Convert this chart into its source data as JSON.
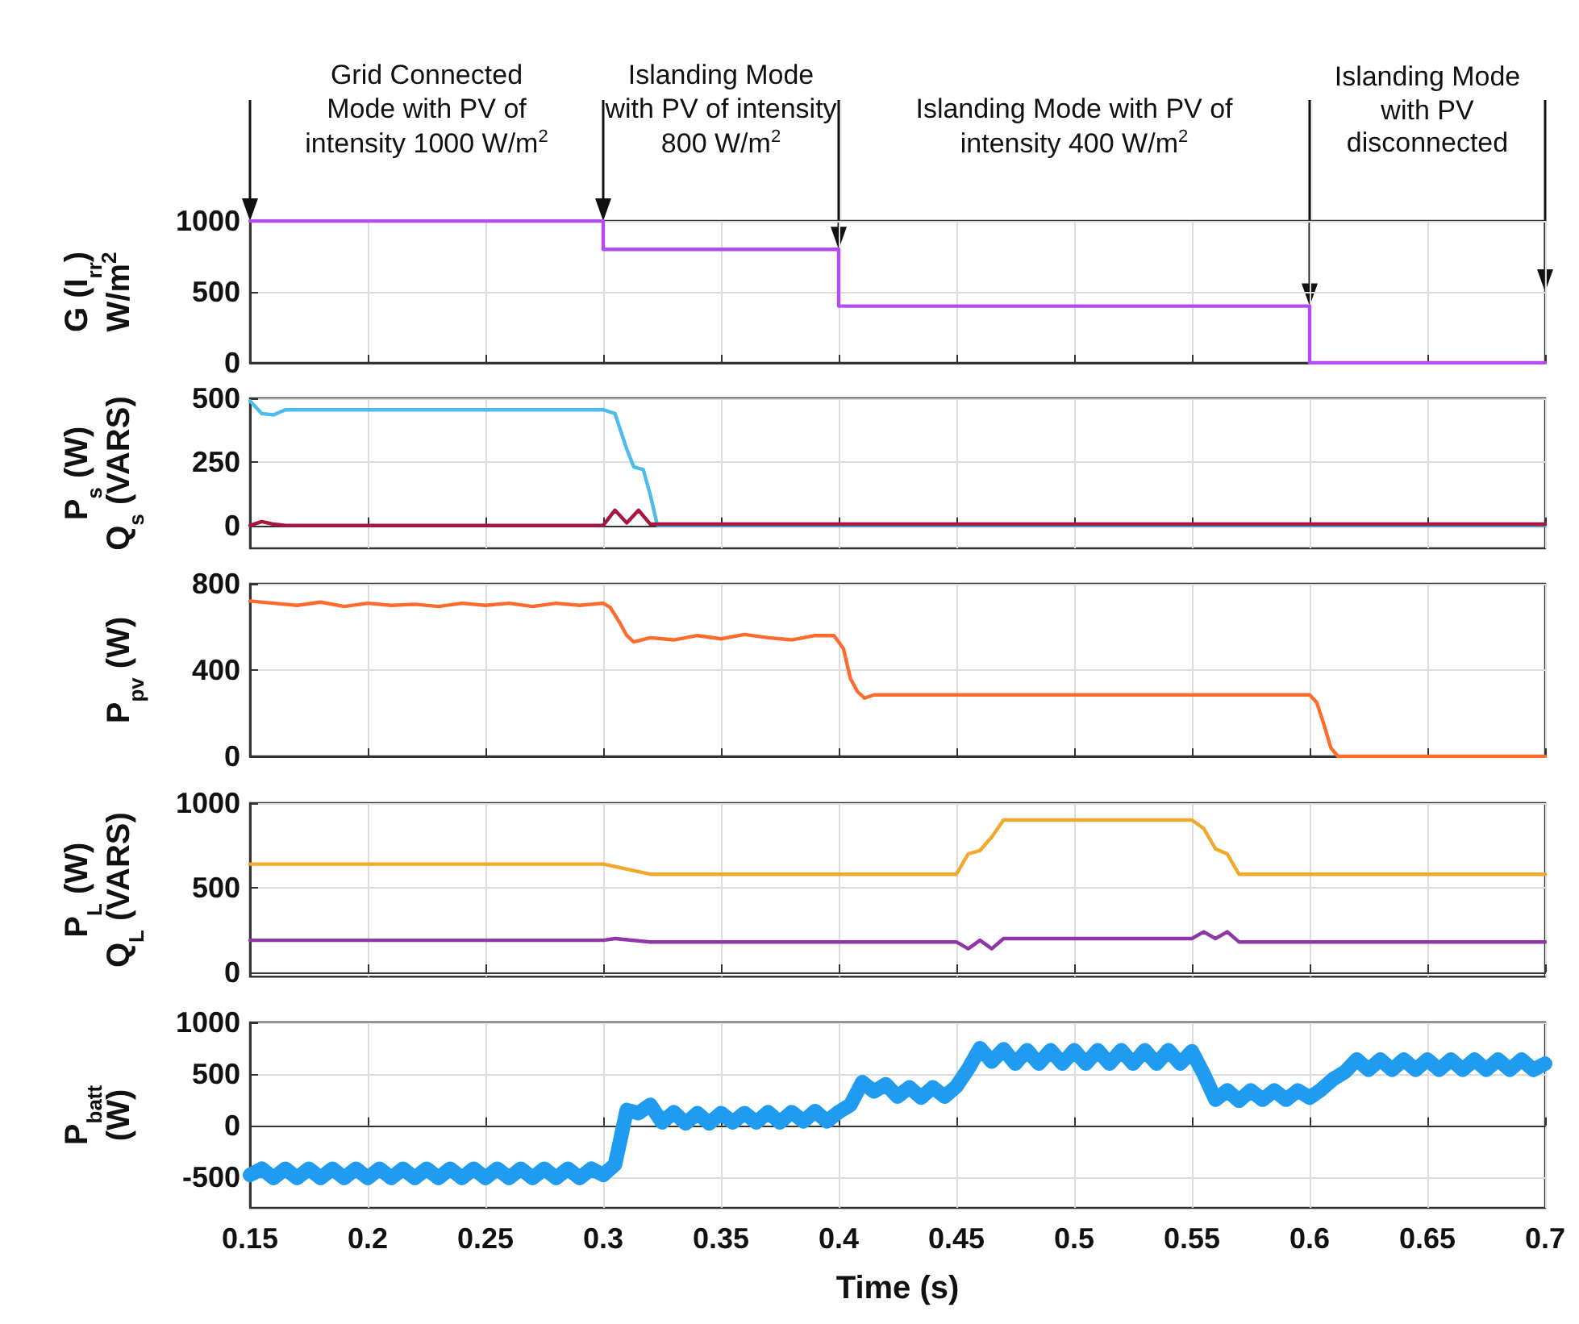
{
  "chart_data": [
    {
      "type": "line",
      "ylabel": "G (I$_{rr}$)\nW/m$^{2}$",
      "xlim": [
        0.15,
        0.7
      ],
      "xticks": [
        0.15,
        0.2,
        0.25,
        0.3,
        0.35,
        0.4,
        0.45,
        0.5,
        0.55,
        0.6,
        0.65,
        0.7
      ],
      "ylim": [
        0,
        1000
      ],
      "yticks": [
        0,
        500,
        1000
      ],
      "grid": true,
      "tick_labels": "y",
      "marker": "none",
      "annotations": [
        "Grid Connected\nMode with PV of\nintensity 1000 W/m$^{2}$",
        "Islanding Mode\nwith PV of intensity\n800 W/m$^{2}$",
        "Islanding Mode with PV of\nintensity 400 W/m$^{2}$",
        "Islanding Mode\nwith PV\ndisconnected"
      ],
      "series": [
        {
          "color": "#b44cf5",
          "x": [
            0.15,
            0.3,
            0.3,
            0.4,
            0.4,
            0.6,
            0.6,
            0.7
          ],
          "values": [
            1000,
            1000,
            800,
            800,
            400,
            400,
            0,
            0
          ]
        }
      ]
    },
    {
      "type": "line",
      "ylabel": "P$_{s}$ (W)\nQ$_{s}$ (VARS)",
      "xlim": [
        0.15,
        0.7
      ],
      "xticks": [
        0.15,
        0.2,
        0.25,
        0.3,
        0.35,
        0.4,
        0.45,
        0.5,
        0.55,
        0.6,
        0.65,
        0.7
      ],
      "ylim": [
        -90,
        500
      ],
      "yticks": [
        0,
        250,
        500
      ],
      "grid": true,
      "tick_labels": "y",
      "marker": "none",
      "series": [
        {
          "color": "#4bbcec",
          "x": [
            0.15,
            0.155,
            0.16,
            0.165,
            0.17,
            0.2,
            0.25,
            0.3,
            0.305,
            0.31,
            0.313,
            0.317,
            0.32,
            0.323,
            0.4,
            0.5,
            0.6,
            0.7
          ],
          "values": [
            490,
            440,
            435,
            455,
            455,
            455,
            455,
            455,
            440,
            300,
            230,
            220,
            120,
            0,
            0,
            0,
            0,
            0
          ]
        },
        {
          "color": "#a8163f",
          "x": [
            0.15,
            0.155,
            0.16,
            0.165,
            0.2,
            0.25,
            0.3,
            0.305,
            0.31,
            0.315,
            0.32,
            0.4,
            0.5,
            0.6,
            0.7
          ],
          "values": [
            0,
            15,
            5,
            0,
            0,
            0,
            0,
            60,
            10,
            60,
            5,
            5,
            5,
            5,
            5
          ]
        }
      ]
    },
    {
      "type": "line",
      "ylabel": "P$_{pv}$ (W)",
      "xlim": [
        0.15,
        0.7
      ],
      "xticks": [
        0.15,
        0.2,
        0.25,
        0.3,
        0.35,
        0.4,
        0.45,
        0.5,
        0.55,
        0.6,
        0.65,
        0.7
      ],
      "ylim": [
        0,
        800
      ],
      "yticks": [
        0,
        400,
        800
      ],
      "grid": true,
      "tick_labels": "y",
      "marker": "none",
      "series": [
        {
          "color": "#ff6b2c",
          "x": [
            0.15,
            0.16,
            0.17,
            0.18,
            0.19,
            0.2,
            0.21,
            0.22,
            0.23,
            0.24,
            0.25,
            0.26,
            0.27,
            0.28,
            0.29,
            0.3,
            0.303,
            0.307,
            0.31,
            0.313,
            0.32,
            0.33,
            0.34,
            0.35,
            0.36,
            0.37,
            0.38,
            0.39,
            0.398,
            0.402,
            0.405,
            0.408,
            0.411,
            0.415,
            0.45,
            0.5,
            0.55,
            0.6,
            0.603,
            0.606,
            0.609,
            0.612,
            0.7
          ],
          "values": [
            720,
            710,
            700,
            715,
            695,
            710,
            700,
            705,
            695,
            710,
            700,
            710,
            695,
            710,
            700,
            710,
            690,
            620,
            560,
            530,
            550,
            540,
            560,
            545,
            565,
            550,
            540,
            560,
            560,
            500,
            360,
            300,
            270,
            285,
            285,
            285,
            285,
            285,
            250,
            150,
            40,
            0,
            0
          ]
        }
      ]
    },
    {
      "type": "line",
      "ylabel": "P$_{L}$ (W)\nQ$_{L}$ (VARS)",
      "xlim": [
        0.15,
        0.7
      ],
      "xticks": [
        0.15,
        0.2,
        0.25,
        0.3,
        0.35,
        0.4,
        0.45,
        0.5,
        0.55,
        0.6,
        0.65,
        0.7
      ],
      "ylim": [
        -25,
        1000
      ],
      "yticks": [
        0,
        500,
        1000
      ],
      "grid": true,
      "tick_labels": "y",
      "marker": "none",
      "series": [
        {
          "color": "#f2a82a",
          "x": [
            0.15,
            0.2,
            0.25,
            0.3,
            0.31,
            0.32,
            0.4,
            0.45,
            0.455,
            0.46,
            0.465,
            0.47,
            0.5,
            0.55,
            0.555,
            0.56,
            0.565,
            0.57,
            0.6,
            0.7
          ],
          "values": [
            640,
            640,
            640,
            640,
            610,
            580,
            580,
            580,
            700,
            720,
            800,
            900,
            900,
            900,
            850,
            730,
            700,
            580,
            580,
            580
          ]
        },
        {
          "color": "#8e35a8",
          "x": [
            0.15,
            0.2,
            0.25,
            0.3,
            0.305,
            0.32,
            0.4,
            0.45,
            0.455,
            0.46,
            0.465,
            0.47,
            0.5,
            0.55,
            0.555,
            0.56,
            0.565,
            0.57,
            0.6,
            0.7
          ],
          "values": [
            190,
            190,
            190,
            190,
            200,
            180,
            180,
            180,
            140,
            190,
            140,
            200,
            200,
            200,
            240,
            200,
            240,
            180,
            180,
            180
          ]
        }
      ]
    },
    {
      "type": "line",
      "ylabel": "P$_{batt}$\n(W)",
      "xlabel": "Time (s)",
      "xlim": [
        0.15,
        0.7
      ],
      "xticks": [
        0.15,
        0.2,
        0.25,
        0.3,
        0.35,
        0.4,
        0.45,
        0.5,
        0.55,
        0.6,
        0.65,
        0.7
      ],
      "ylim": [
        -800,
        1000
      ],
      "yticks": [
        -500,
        0,
        500,
        1000
      ],
      "grid": true,
      "marker": "none",
      "series": [
        {
          "color": "#1f9cf0",
          "x": [
            0.15,
            0.155,
            0.16,
            0.165,
            0.17,
            0.175,
            0.18,
            0.185,
            0.19,
            0.195,
            0.2,
            0.205,
            0.21,
            0.215,
            0.22,
            0.225,
            0.23,
            0.235,
            0.24,
            0.245,
            0.25,
            0.255,
            0.26,
            0.265,
            0.27,
            0.275,
            0.28,
            0.285,
            0.29,
            0.295,
            0.3,
            0.305,
            0.31,
            0.315,
            0.32,
            0.325,
            0.33,
            0.335,
            0.34,
            0.345,
            0.35,
            0.355,
            0.36,
            0.365,
            0.37,
            0.375,
            0.38,
            0.385,
            0.39,
            0.395,
            0.4,
            0.405,
            0.41,
            0.415,
            0.42,
            0.425,
            0.43,
            0.435,
            0.44,
            0.445,
            0.45,
            0.455,
            0.46,
            0.465,
            0.47,
            0.475,
            0.48,
            0.485,
            0.49,
            0.495,
            0.5,
            0.505,
            0.51,
            0.515,
            0.52,
            0.525,
            0.53,
            0.535,
            0.54,
            0.545,
            0.55,
            0.555,
            0.56,
            0.565,
            0.57,
            0.575,
            0.58,
            0.585,
            0.59,
            0.595,
            0.6,
            0.605,
            0.61,
            0.615,
            0.62,
            0.625,
            0.63,
            0.635,
            0.64,
            0.645,
            0.65,
            0.655,
            0.66,
            0.665,
            0.67,
            0.675,
            0.68,
            0.685,
            0.69,
            0.695,
            0.7
          ],
          "values": [
            -480,
            -420,
            -510,
            -420,
            -510,
            -420,
            -510,
            -420,
            -510,
            -420,
            -510,
            -420,
            -510,
            -420,
            -510,
            -420,
            -510,
            -420,
            -510,
            -420,
            -510,
            -420,
            -510,
            -420,
            -510,
            -420,
            -510,
            -420,
            -510,
            -420,
            -480,
            -380,
            150,
            120,
            200,
            30,
            130,
            20,
            120,
            20,
            120,
            30,
            120,
            30,
            130,
            30,
            130,
            40,
            140,
            40,
            130,
            200,
            420,
            330,
            400,
            280,
            370,
            270,
            370,
            280,
            380,
            550,
            750,
            620,
            740,
            600,
            730,
            600,
            730,
            600,
            730,
            600,
            730,
            600,
            730,
            600,
            730,
            600,
            730,
            600,
            720,
            500,
            250,
            340,
            240,
            340,
            250,
            340,
            250,
            340,
            270,
            350,
            450,
            520,
            640,
            540,
            640,
            540,
            640,
            540,
            640,
            540,
            640,
            540,
            640,
            540,
            640,
            540,
            640,
            540,
            600
          ]
        }
      ]
    }
  ]
}
